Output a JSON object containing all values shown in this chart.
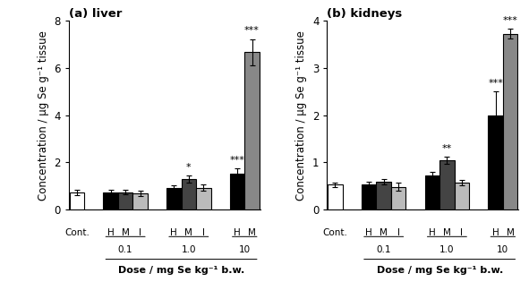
{
  "liver": {
    "title": "(a) liver",
    "ylim": [
      0,
      8
    ],
    "yticks": [
      0,
      2,
      4,
      6,
      8
    ],
    "ylabel": "Concentration / μg Se g⁻¹ tissue",
    "means": [
      0.72,
      0.73,
      0.73,
      0.68,
      0.9,
      1.28,
      0.92,
      1.52,
      6.68
    ],
    "errors": [
      0.12,
      0.1,
      0.1,
      0.12,
      0.1,
      0.15,
      0.12,
      0.22,
      0.55
    ],
    "colors": [
      "white",
      "black",
      "#444444",
      "#bbbbbb",
      "black",
      "#444444",
      "#bbbbbb",
      "black",
      "#888888"
    ],
    "significance": [
      "",
      "",
      "",
      "",
      "",
      "*",
      "",
      "***",
      "***"
    ],
    "xlabel": "Dose / mg Se kg⁻¹ b.w."
  },
  "kidneys": {
    "title": "(b) kidneys",
    "ylim": [
      0,
      4
    ],
    "yticks": [
      0,
      1,
      2,
      3,
      4
    ],
    "ylabel": "Concentration / μg Se g⁻¹ tissue",
    "means": [
      0.52,
      0.52,
      0.58,
      0.48,
      0.72,
      1.04,
      0.56,
      2.0,
      3.73
    ],
    "errors": [
      0.05,
      0.06,
      0.06,
      0.08,
      0.08,
      0.08,
      0.06,
      0.5,
      0.1
    ],
    "colors": [
      "white",
      "black",
      "#444444",
      "#bbbbbb",
      "black",
      "#444444",
      "#bbbbbb",
      "black",
      "#888888"
    ],
    "significance": [
      "",
      "",
      "",
      "",
      "",
      "**",
      "",
      "***",
      "***"
    ],
    "xlabel": "Dose / mg Se kg⁻¹ b.w."
  },
  "bar_width": 0.7,
  "edgecolor": "black",
  "figsize": [
    5.91,
    3.34
  ],
  "dpi": 100
}
